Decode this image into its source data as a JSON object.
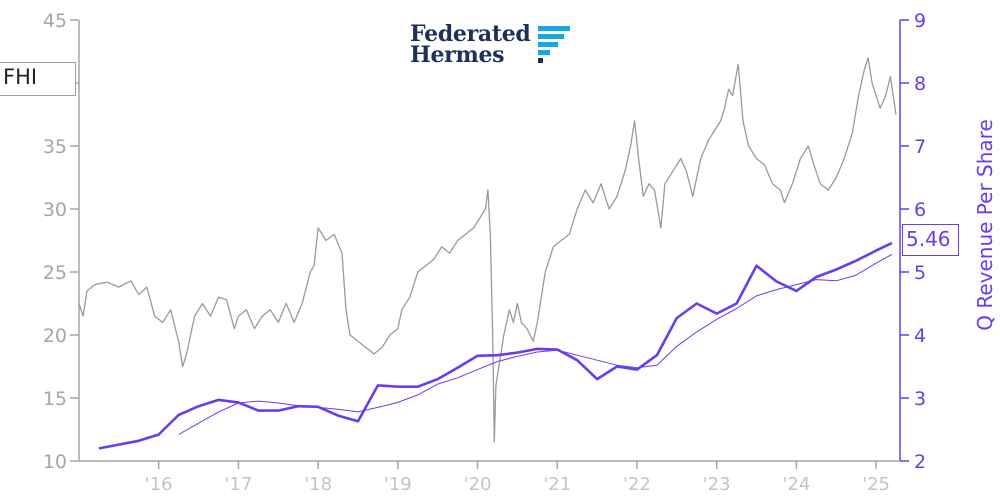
{
  "ticker": "FHI",
  "logo": {
    "line1": "Federated",
    "line2": "Hermes",
    "icon": "federated-hermes-f-mark-icon"
  },
  "colors": {
    "price": "#9a9a9a",
    "revenue": "#6a3cf0",
    "left_axis": "#a6a6a6",
    "x_ticks": "#c4c4c4"
  },
  "latest_value_label": "5.46",
  "chart_data": {
    "type": "line",
    "title": "",
    "xlabel": "",
    "ylabel_left": "",
    "ylabel_right": "Q Revenue Per Share",
    "x_range": [
      2015.0,
      2025.3
    ],
    "ylim_left": [
      10,
      45
    ],
    "ylim_right": [
      2,
      9
    ],
    "yticks_left": [
      10,
      15,
      20,
      25,
      30,
      35,
      40,
      45
    ],
    "yticks_right": [
      2,
      3,
      4,
      5,
      6,
      7,
      8,
      9
    ],
    "x_ticks": [
      {
        "label": "'16",
        "x": 2016
      },
      {
        "label": "'17",
        "x": 2017
      },
      {
        "label": "'18",
        "x": 2018
      },
      {
        "label": "'19",
        "x": 2019
      },
      {
        "label": "'20",
        "x": 2020
      },
      {
        "label": "'21",
        "x": 2021
      },
      {
        "label": "'22",
        "x": 2022
      },
      {
        "label": "'23",
        "x": 2023
      },
      {
        "label": "'24",
        "x": 2024
      },
      {
        "label": "'25",
        "x": 2025
      }
    ],
    "grid": false,
    "legend": "none",
    "series": [
      {
        "axis": "left",
        "style": "price",
        "points": [
          [
            2015.0,
            22.5
          ],
          [
            2015.05,
            21.5
          ],
          [
            2015.1,
            23.5
          ],
          [
            2015.2,
            24
          ],
          [
            2015.35,
            24.2
          ],
          [
            2015.5,
            23.8
          ],
          [
            2015.65,
            24.3
          ],
          [
            2015.75,
            23.2
          ],
          [
            2015.85,
            23.8
          ],
          [
            2015.95,
            21.5
          ],
          [
            2016.05,
            21
          ],
          [
            2016.15,
            22
          ],
          [
            2016.25,
            19.5
          ],
          [
            2016.3,
            17.5
          ],
          [
            2016.35,
            18.5
          ],
          [
            2016.45,
            21.5
          ],
          [
            2016.55,
            22.5
          ],
          [
            2016.65,
            21.5
          ],
          [
            2016.75,
            23
          ],
          [
            2016.85,
            22.8
          ],
          [
            2016.95,
            20.5
          ],
          [
            2017.0,
            21.5
          ],
          [
            2017.1,
            22
          ],
          [
            2017.2,
            20.5
          ],
          [
            2017.3,
            21.5
          ],
          [
            2017.4,
            22
          ],
          [
            2017.5,
            21
          ],
          [
            2017.6,
            22.5
          ],
          [
            2017.7,
            21
          ],
          [
            2017.8,
            22.5
          ],
          [
            2017.9,
            25
          ],
          [
            2017.95,
            25.5
          ],
          [
            2018.0,
            28.5
          ],
          [
            2018.1,
            27.5
          ],
          [
            2018.2,
            28
          ],
          [
            2018.3,
            26.5
          ],
          [
            2018.35,
            22
          ],
          [
            2018.4,
            20
          ],
          [
            2018.5,
            19.5
          ],
          [
            2018.6,
            19
          ],
          [
            2018.7,
            18.5
          ],
          [
            2018.8,
            19
          ],
          [
            2018.9,
            20
          ],
          [
            2019.0,
            20.5
          ],
          [
            2019.05,
            22
          ],
          [
            2019.15,
            23
          ],
          [
            2019.25,
            25
          ],
          [
            2019.35,
            25.5
          ],
          [
            2019.45,
            26
          ],
          [
            2019.55,
            27
          ],
          [
            2019.65,
            26.5
          ],
          [
            2019.75,
            27.5
          ],
          [
            2019.85,
            28
          ],
          [
            2019.95,
            28.5
          ],
          [
            2020.05,
            29.5
          ],
          [
            2020.1,
            30
          ],
          [
            2020.13,
            31.5
          ],
          [
            2020.16,
            28
          ],
          [
            2020.19,
            20
          ],
          [
            2020.21,
            11.5
          ],
          [
            2020.23,
            16
          ],
          [
            2020.28,
            18
          ],
          [
            2020.33,
            20
          ],
          [
            2020.4,
            22
          ],
          [
            2020.45,
            21
          ],
          [
            2020.5,
            22.5
          ],
          [
            2020.55,
            21
          ],
          [
            2020.62,
            20.5
          ],
          [
            2020.7,
            19.5
          ],
          [
            2020.75,
            21
          ],
          [
            2020.8,
            23
          ],
          [
            2020.85,
            25
          ],
          [
            2020.95,
            27
          ],
          [
            2021.05,
            27.5
          ],
          [
            2021.15,
            28
          ],
          [
            2021.25,
            30
          ],
          [
            2021.35,
            31.5
          ],
          [
            2021.45,
            30.5
          ],
          [
            2021.55,
            32
          ],
          [
            2021.65,
            30
          ],
          [
            2021.75,
            31
          ],
          [
            2021.85,
            33
          ],
          [
            2021.92,
            35
          ],
          [
            2021.97,
            37
          ],
          [
            2022.02,
            34
          ],
          [
            2022.08,
            31
          ],
          [
            2022.15,
            32
          ],
          [
            2022.22,
            31.5
          ],
          [
            2022.3,
            28.5
          ],
          [
            2022.35,
            32
          ],
          [
            2022.45,
            33
          ],
          [
            2022.55,
            34
          ],
          [
            2022.62,
            33
          ],
          [
            2022.7,
            31
          ],
          [
            2022.8,
            34
          ],
          [
            2022.9,
            35.5
          ],
          [
            2023.0,
            36.5
          ],
          [
            2023.05,
            37
          ],
          [
            2023.1,
            38
          ],
          [
            2023.15,
            39.5
          ],
          [
            2023.2,
            39
          ],
          [
            2023.27,
            41.5
          ],
          [
            2023.33,
            37
          ],
          [
            2023.4,
            35
          ],
          [
            2023.5,
            34
          ],
          [
            2023.6,
            33.5
          ],
          [
            2023.7,
            32
          ],
          [
            2023.8,
            31.5
          ],
          [
            2023.85,
            30.5
          ],
          [
            2023.95,
            32
          ],
          [
            2024.05,
            34
          ],
          [
            2024.15,
            35
          ],
          [
            2024.22,
            33.5
          ],
          [
            2024.3,
            32
          ],
          [
            2024.4,
            31.5
          ],
          [
            2024.5,
            32.5
          ],
          [
            2024.6,
            34
          ],
          [
            2024.7,
            36
          ],
          [
            2024.78,
            39
          ],
          [
            2024.85,
            41
          ],
          [
            2024.9,
            42
          ],
          [
            2024.95,
            40
          ],
          [
            2025.0,
            39
          ],
          [
            2025.05,
            38
          ],
          [
            2025.12,
            39
          ],
          [
            2025.18,
            40.5
          ],
          [
            2025.25,
            37.5
          ]
        ]
      },
      {
        "axis": "right",
        "style": "revenue",
        "name": "Q Revenue Per Share",
        "points": [
          [
            2015.25,
            2.2
          ],
          [
            2015.5,
            2.26
          ],
          [
            2015.75,
            2.32
          ],
          [
            2016.0,
            2.42
          ],
          [
            2016.25,
            2.73
          ],
          [
            2016.5,
            2.87
          ],
          [
            2016.75,
            2.97
          ],
          [
            2017.0,
            2.93
          ],
          [
            2017.25,
            2.8
          ],
          [
            2017.5,
            2.8
          ],
          [
            2017.75,
            2.87
          ],
          [
            2018.0,
            2.86
          ],
          [
            2018.25,
            2.72
          ],
          [
            2018.5,
            2.63
          ],
          [
            2018.75,
            3.2
          ],
          [
            2019.0,
            3.18
          ],
          [
            2019.25,
            3.18
          ],
          [
            2019.5,
            3.3
          ],
          [
            2019.75,
            3.48
          ],
          [
            2020.0,
            3.67
          ],
          [
            2020.25,
            3.68
          ],
          [
            2020.5,
            3.72
          ],
          [
            2020.75,
            3.78
          ],
          [
            2021.0,
            3.77
          ],
          [
            2021.25,
            3.6
          ],
          [
            2021.5,
            3.3
          ],
          [
            2021.75,
            3.5
          ],
          [
            2022.0,
            3.45
          ],
          [
            2022.25,
            3.68
          ],
          [
            2022.5,
            4.27
          ],
          [
            2022.75,
            4.5
          ],
          [
            2023.0,
            4.34
          ],
          [
            2023.25,
            4.5
          ],
          [
            2023.5,
            5.1
          ],
          [
            2023.75,
            4.85
          ],
          [
            2024.0,
            4.7
          ],
          [
            2024.25,
            4.92
          ],
          [
            2024.5,
            5.04
          ],
          [
            2024.75,
            5.18
          ],
          [
            2025.0,
            5.34
          ],
          [
            2025.2,
            5.46
          ]
        ]
      },
      {
        "axis": "right",
        "style": "revenue-trend",
        "points": [
          [
            2016.25,
            2.42
          ],
          [
            2016.5,
            2.6
          ],
          [
            2016.75,
            2.78
          ],
          [
            2017.0,
            2.92
          ],
          [
            2017.25,
            2.95
          ],
          [
            2017.5,
            2.92
          ],
          [
            2017.75,
            2.88
          ],
          [
            2018.0,
            2.85
          ],
          [
            2018.25,
            2.82
          ],
          [
            2018.5,
            2.78
          ],
          [
            2018.75,
            2.85
          ],
          [
            2019.0,
            2.93
          ],
          [
            2019.25,
            3.05
          ],
          [
            2019.5,
            3.22
          ],
          [
            2019.75,
            3.32
          ],
          [
            2020.0,
            3.45
          ],
          [
            2020.25,
            3.58
          ],
          [
            2020.5,
            3.66
          ],
          [
            2020.75,
            3.73
          ],
          [
            2021.0,
            3.76
          ],
          [
            2021.25,
            3.68
          ],
          [
            2021.5,
            3.6
          ],
          [
            2021.75,
            3.52
          ],
          [
            2022.0,
            3.48
          ],
          [
            2022.25,
            3.52
          ],
          [
            2022.5,
            3.82
          ],
          [
            2022.75,
            4.05
          ],
          [
            2023.0,
            4.25
          ],
          [
            2023.25,
            4.42
          ],
          [
            2023.5,
            4.62
          ],
          [
            2023.75,
            4.72
          ],
          [
            2024.0,
            4.8
          ],
          [
            2024.25,
            4.88
          ],
          [
            2024.5,
            4.86
          ],
          [
            2024.75,
            4.95
          ],
          [
            2025.0,
            5.14
          ],
          [
            2025.2,
            5.28
          ]
        ]
      }
    ]
  }
}
